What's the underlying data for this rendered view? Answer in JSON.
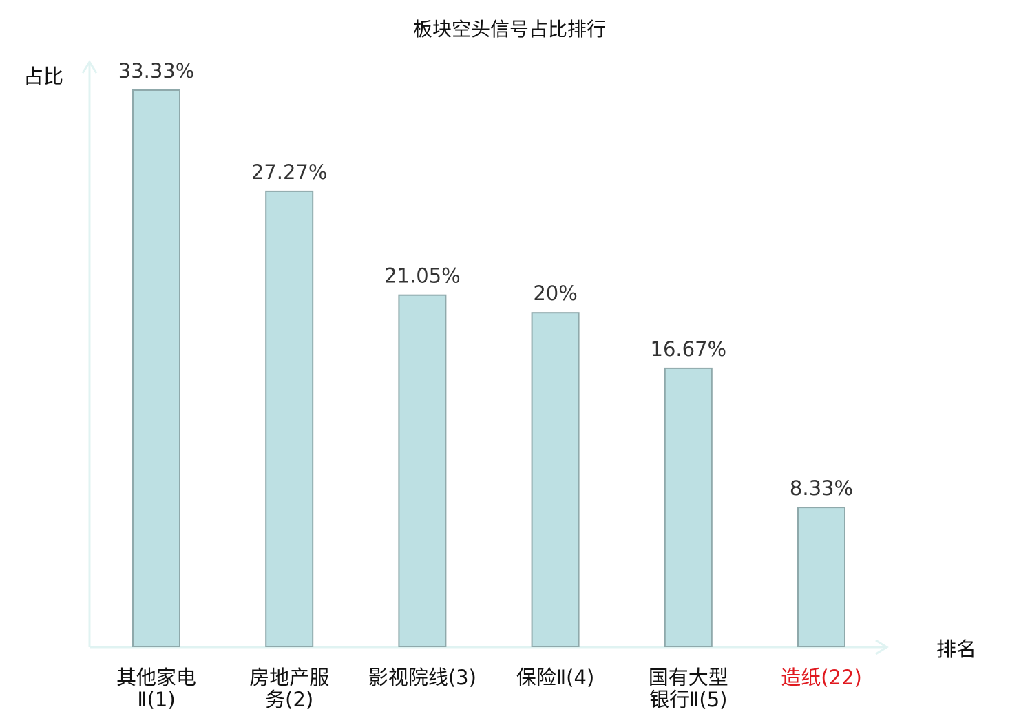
{
  "chart_data": {
    "type": "bar",
    "title": "板块空头信号占比排行",
    "ylabel": "占比",
    "xlabel": "排名",
    "ylim": [
      0,
      33.33
    ],
    "grid": false,
    "legend": "none",
    "categories": [
      {
        "lines": [
          "其他家电",
          "Ⅱ(1)"
        ],
        "highlight": false
      },
      {
        "lines": [
          "房地产服",
          "务(2)"
        ],
        "highlight": false
      },
      {
        "lines": [
          "影视院线(3)"
        ],
        "highlight": false
      },
      {
        "lines": [
          "保险Ⅱ(4)"
        ],
        "highlight": false
      },
      {
        "lines": [
          "国有大型",
          "银行Ⅱ(5)"
        ],
        "highlight": false
      },
      {
        "lines": [
          "造纸(22)"
        ],
        "highlight": true
      }
    ],
    "values": [
      33.33,
      27.27,
      21.05,
      20,
      16.67,
      8.33
    ],
    "value_labels": [
      "33.33%",
      "27.27%",
      "21.05%",
      "20%",
      "16.67%",
      "8.33%"
    ],
    "colors": {
      "bar_fill": "#bde0e3",
      "bar_stroke": "#8fa9ab",
      "axis": "#e0f3f2",
      "label_normal": "#111111",
      "label_highlight": "#e0191f"
    }
  }
}
